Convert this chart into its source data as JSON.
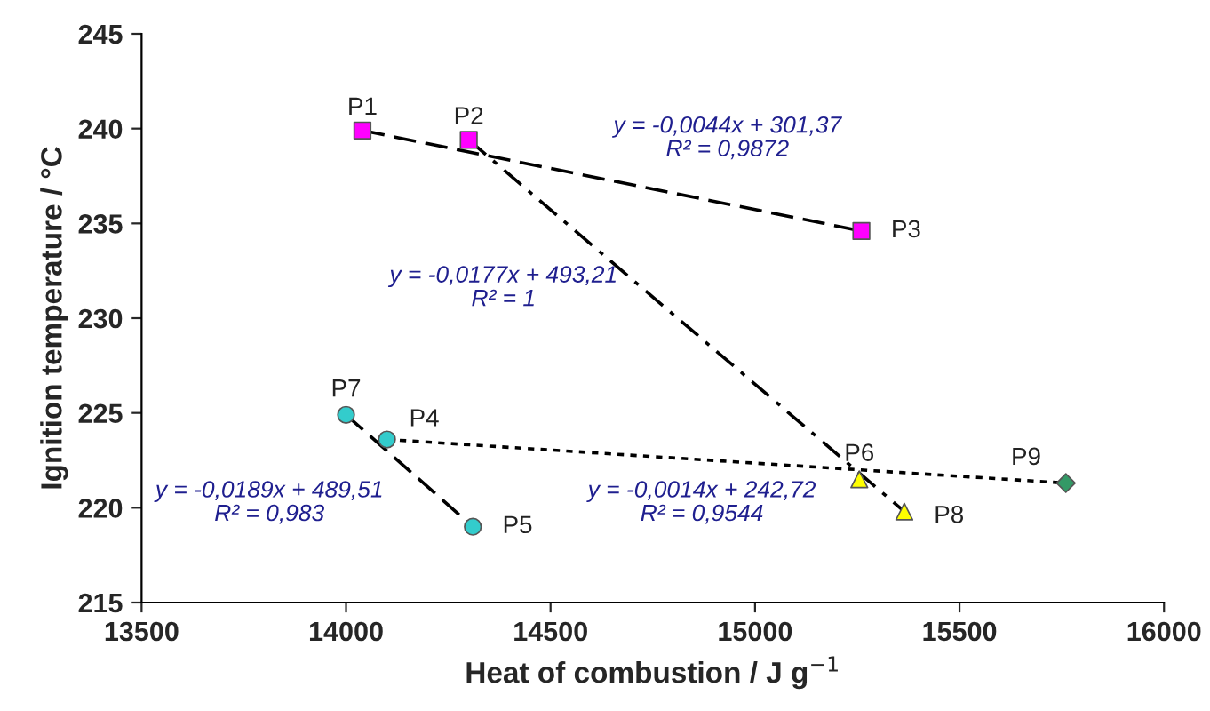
{
  "chart_data": {
    "type": "scatter",
    "xlabel": "Heat of combustion / J g$^{−1}$",
    "ylabel": "Ignition temperature / °C",
    "xlim": [
      13500,
      16000
    ],
    "xticks": [
      13500,
      14000,
      14500,
      15000,
      15500,
      16000
    ],
    "ylim": [
      215,
      245
    ],
    "yticks": [
      215,
      220,
      225,
      230,
      235,
      240,
      245
    ],
    "grid": false,
    "legend": false,
    "series": [
      {
        "name": "P1",
        "color": "#ff00ff",
        "marker": "square",
        "x": [
          14040
        ],
        "values": [
          239.9
        ]
      },
      {
        "name": "P2",
        "color": "#ff00ff",
        "marker": "square",
        "x": [
          14300
        ],
        "values": [
          239.4
        ]
      },
      {
        "name": "P3",
        "color": "#ff00ff",
        "marker": "square",
        "x": [
          15260
        ],
        "values": [
          234.6
        ]
      },
      {
        "name": "P4",
        "color": "#33cccc",
        "marker": "circle",
        "x": [
          14100
        ],
        "values": [
          223.6
        ]
      },
      {
        "name": "P5",
        "color": "#33cccc",
        "marker": "circle",
        "x": [
          14310
        ],
        "values": [
          219.0
        ]
      },
      {
        "name": "P6",
        "color": "#ffff00",
        "marker": "triangle",
        "x": [
          15255
        ],
        "values": [
          221.5
        ]
      },
      {
        "name": "P7",
        "color": "#33cccc",
        "marker": "circle",
        "x": [
          14000
        ],
        "values": [
          224.9
        ]
      },
      {
        "name": "P8",
        "color": "#ffff00",
        "marker": "triangle",
        "x": [
          15365
        ],
        "values": [
          219.8
        ]
      },
      {
        "name": "P9",
        "color": "#339966",
        "marker": "diamond",
        "x": [
          15760
        ],
        "values": [
          221.3
        ]
      },
      {
        "type": "line",
        "color": "#000000",
        "line_style": "dashed",
        "marker": "none",
        "x": [
          14040,
          15260
        ],
        "values": [
          239.9,
          234.6
        ]
      },
      {
        "type": "line",
        "color": "#000000",
        "line_style": "dashdot",
        "marker": "none",
        "x": [
          14300,
          15365
        ],
        "values": [
          239.4,
          219.8
        ]
      },
      {
        "type": "line",
        "color": "#000000",
        "line_style": "dotted",
        "marker": "none",
        "x": [
          14100,
          15760
        ],
        "values": [
          223.6,
          221.3
        ]
      },
      {
        "type": "line",
        "color": "#000000",
        "line_style": "dashed",
        "marker": "none",
        "x": [
          14000,
          14310
        ],
        "values": [
          224.9,
          219.0
        ]
      }
    ],
    "annotations": [
      "y = -0,0044x + 301,37\nR² = 0,9872",
      "y = -0,0177x + 493,21\nR² = 1",
      "y = -0,0189x + 489,51\nR² = 0,983",
      "y = -0,0014x + 242,72\nR² = 0,9544"
    ]
  }
}
